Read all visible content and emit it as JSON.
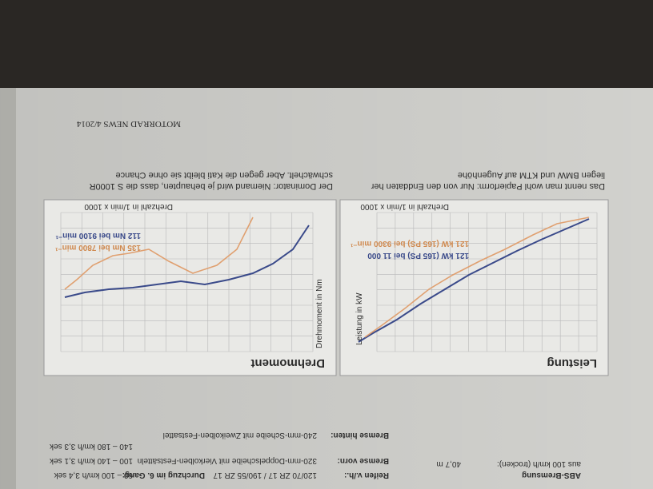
{
  "footer": {
    "source": "MOTORRAD NEWS 4/2014"
  },
  "captions": [
    "Das nennt man wohl Papierform: Nur von den Enddaten her",
    "liegen BMW und KTM auf Augenhöhe",
    "Der Dominator: Niemand wird je behaupten, dass die S 1000R",
    "schwächelt. Aber gegen die Kati bleibt sie ohne Chance"
  ],
  "charts": [
    {
      "title": "Leistung",
      "y_label": "Leistung in kW",
      "x_label": "Drehzahl in 1/min x 1000",
      "notes": [
        "121 kW (165 PS) bei 11 000",
        "121 kW (165 PS) bei 9300 min⁻¹"
      ]
    },
    {
      "title": "Drehmoment",
      "y_label": "Drehmoment in Nm",
      "x_label": "Drehzahl in 1/min x 1000",
      "notes": [
        "135 Nm bei 7800 min⁻¹",
        "112 Nm bei 9100 min⁻¹"
      ]
    }
  ],
  "table": {
    "rows": [
      [
        "ABS-Bremsung",
        ""
      ],
      [
        "aus 100 km/h (trocken):",
        "40,7 m"
      ],
      [
        "Reifen v./h.:",
        "120/70 ZR 17 / 190/55 ZR 17"
      ],
      [
        "Bremse vorn:",
        "320-mm-Doppelscheibe mit Vierkolben-Festsätteln"
      ],
      [
        "Bremse hinten:",
        "240-mm-Scheibe mit Zweikolben-Festsattel"
      ],
      [
        "Durchzug im 6. Gang:",
        "60 – 100 km/h 3,4 sek"
      ],
      [
        "",
        "100 – 140 km/h 3,1 sek"
      ],
      [
        "",
        "140 – 180 km/h 3,3 sek"
      ]
    ]
  }
}
